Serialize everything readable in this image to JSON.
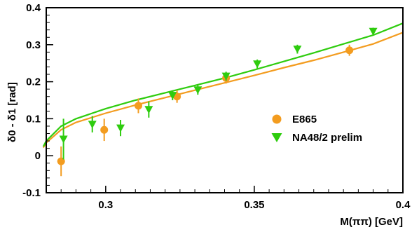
{
  "chart_data": {
    "type": "scatter",
    "xlabel": "M(ππ) [GeV]",
    "ylabel": "δ0 - δ1 [rad]",
    "xlim": [
      0.28,
      0.4
    ],
    "ylim": [
      -0.1,
      0.4
    ],
    "x_ticks": [
      "0.3",
      "0.35",
      "0.4"
    ],
    "y_ticks": [
      "-0.1",
      "0",
      "0.1",
      "0.2",
      "0.3",
      "0.4"
    ],
    "legend_position": "right",
    "colors": {
      "E865": "#f39c1f",
      "NA48": "#2ecc0e"
    },
    "series": [
      {
        "name": "E865",
        "marker": "circle",
        "color": "#f39c1f",
        "points": [
          {
            "x": 0.285,
            "y": -0.015,
            "err": 0.04
          },
          {
            "x": 0.2995,
            "y": 0.07,
            "err": 0.03
          },
          {
            "x": 0.311,
            "y": 0.135,
            "err": 0.02
          },
          {
            "x": 0.324,
            "y": 0.16,
            "err": 0.017
          },
          {
            "x": 0.3405,
            "y": 0.21,
            "err": 0.015
          },
          {
            "x": 0.382,
            "y": 0.285,
            "err": 0.015
          }
        ]
      },
      {
        "name": "NA48/2 prelim",
        "marker": "triangle-down",
        "color": "#2ecc0e",
        "points": [
          {
            "x": 0.2858,
            "y": 0.045,
            "err": 0.055
          },
          {
            "x": 0.2955,
            "y": 0.085,
            "err": 0.022
          },
          {
            "x": 0.305,
            "y": 0.075,
            "err": 0.022
          },
          {
            "x": 0.3145,
            "y": 0.125,
            "err": 0.022
          },
          {
            "x": 0.3225,
            "y": 0.163,
            "err": 0.013
          },
          {
            "x": 0.331,
            "y": 0.178,
            "err": 0.013
          },
          {
            "x": 0.3405,
            "y": 0.215,
            "err": 0.012
          },
          {
            "x": 0.351,
            "y": 0.248,
            "err": 0.012
          },
          {
            "x": 0.3645,
            "y": 0.288,
            "err": 0.012
          },
          {
            "x": 0.39,
            "y": 0.336,
            "err": 0.01
          }
        ]
      }
    ],
    "fit_curves": [
      {
        "series": "E865",
        "color": "#f39c1f",
        "x": [
          0.279,
          0.28,
          0.285,
          0.29,
          0.3,
          0.31,
          0.32,
          0.33,
          0.34,
          0.35,
          0.36,
          0.37,
          0.38,
          0.39,
          0.4
        ],
        "y": [
          0.022,
          0.035,
          0.07,
          0.09,
          0.115,
          0.137,
          0.157,
          0.177,
          0.197,
          0.217,
          0.238,
          0.258,
          0.28,
          0.302,
          0.333
        ]
      },
      {
        "series": "NA48/2 prelim",
        "color": "#2ecc0e",
        "x": [
          0.279,
          0.28,
          0.285,
          0.29,
          0.3,
          0.31,
          0.32,
          0.33,
          0.34,
          0.35,
          0.36,
          0.37,
          0.38,
          0.39,
          0.4
        ],
        "y": [
          0.025,
          0.04,
          0.08,
          0.1,
          0.127,
          0.15,
          0.17,
          0.19,
          0.21,
          0.232,
          0.255,
          0.278,
          0.302,
          0.326,
          0.358
        ]
      }
    ]
  }
}
